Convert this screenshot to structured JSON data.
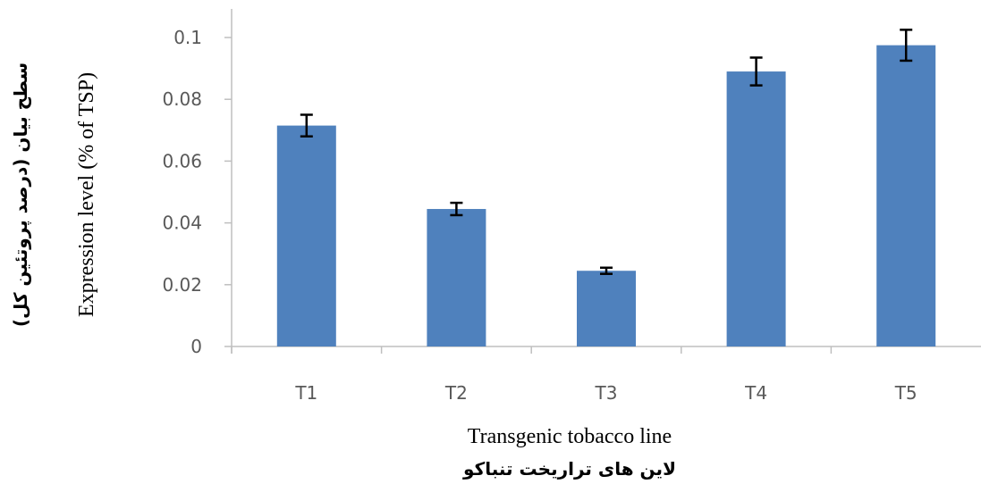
{
  "chart_data": {
    "type": "bar",
    "categories": [
      "T1",
      "T2",
      "T3",
      "T4",
      "T5"
    ],
    "values": [
      0.0715,
      0.0445,
      0.0245,
      0.089,
      0.0975
    ],
    "errors": [
      0.0035,
      0.002,
      0.001,
      0.0045,
      0.005
    ],
    "xlabel": "Transgenic tobacco line",
    "xlabel_fa": "لاین های تراریخت تنباکو",
    "ylabel": "Expression level (% of TSP)",
    "ylabel_fa": "سطح بیان (درصد پروتئین کل)",
    "ylim": [
      0,
      0.1
    ],
    "yticks": [
      "0",
      "0.02",
      "0.04",
      "0.06",
      "0.08",
      "0.1"
    ],
    "grid": false,
    "colors": {
      "bar": "#4f81bd",
      "axis": "#bfbfbf",
      "error": "#000000"
    }
  }
}
